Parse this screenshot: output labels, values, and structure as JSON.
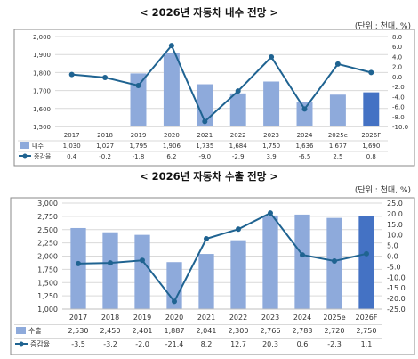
{
  "chart_data": [
    {
      "type": "bar",
      "title": "< 2026년 자동차 내수 전망 >",
      "unit": "(단위 : 천대, %)",
      "categories": [
        "2017",
        "2018",
        "2019",
        "2020",
        "2021",
        "2022",
        "2023",
        "2024",
        "2025e",
        "2026F"
      ],
      "bar_series": {
        "name": "내수",
        "values": [
          1030,
          1027,
          1795,
          1906,
          1735,
          1684,
          1750,
          1636,
          1677,
          1690
        ]
      },
      "line_series": {
        "name": "증감율",
        "values": [
          0.4,
          -0.2,
          -1.8,
          6.2,
          -9.0,
          -2.9,
          3.9,
          -6.5,
          2.5,
          0.8
        ]
      },
      "table_values": {
        "bar": [
          "1,030",
          "1,027",
          "1,795",
          "1,906",
          "1,735",
          "1,684",
          "1,750",
          "1,636",
          "1,677",
          "1,690"
        ],
        "line": [
          "0.4",
          "-0.2",
          "-1.8",
          "6.2",
          "-9.0",
          "-2.9",
          "3.9",
          "-6.5",
          "2.5",
          "0.8"
        ]
      },
      "ylim_left": [
        1500,
        2000
      ],
      "yticks_left": [
        "1,500",
        "1,600",
        "1,700",
        "1,800",
        "1,900",
        "2,000"
      ],
      "ylim_right": [
        -10,
        8
      ],
      "yticks_right": [
        "-10.0",
        "-8.0",
        "-6.0",
        "-4.0",
        "-2.0",
        "0.0",
        "2.0",
        "4.0",
        "6.0",
        "8.0"
      ],
      "grid": true,
      "bar_color": "#8eaadb",
      "highlight_color": "#4472c4",
      "line_color": "#1f6391"
    },
    {
      "type": "bar",
      "title": "< 2026년 자동차 수출 전망 >",
      "unit": "(단위 : 천대, %)",
      "categories": [
        "2017",
        "2018",
        "2019",
        "2020",
        "2021",
        "2022",
        "2023",
        "2024",
        "2025e",
        "2026F"
      ],
      "bar_series": {
        "name": "수출",
        "values": [
          2530,
          2450,
          2401,
          1887,
          2041,
          2300,
          2766,
          2783,
          2720,
          2750
        ]
      },
      "line_series": {
        "name": "증감율",
        "values": [
          -3.5,
          -3.2,
          -2.0,
          -21.4,
          8.2,
          12.7,
          20.3,
          0.6,
          -2.3,
          1.1
        ]
      },
      "table_values": {
        "bar": [
          "2,530",
          "2,450",
          "2,401",
          "1,887",
          "2,041",
          "2,300",
          "2,766",
          "2,783",
          "2,720",
          "2,750"
        ],
        "line": [
          "-3.5",
          "-3.2",
          "-2.0",
          "-21.4",
          "8.2",
          "12.7",
          "20.3",
          "0.6",
          "-2.3",
          "1.1"
        ]
      },
      "ylim_left": [
        1000,
        3000
      ],
      "yticks_left": [
        "1,000",
        "1,250",
        "1,500",
        "1,750",
        "2,000",
        "2,250",
        "2,500",
        "2,750",
        "3,000"
      ],
      "ylim_right": [
        -25,
        25
      ],
      "yticks_right": [
        "-25.0",
        "-20.0",
        "-15.0",
        "-10.0",
        "-5.0",
        "0.0",
        "5.0",
        "10.0",
        "15.0",
        "20.0",
        "25.0"
      ],
      "grid": true,
      "bar_color": "#8eaadb",
      "highlight_color": "#4472c4",
      "line_color": "#1f6391"
    }
  ]
}
